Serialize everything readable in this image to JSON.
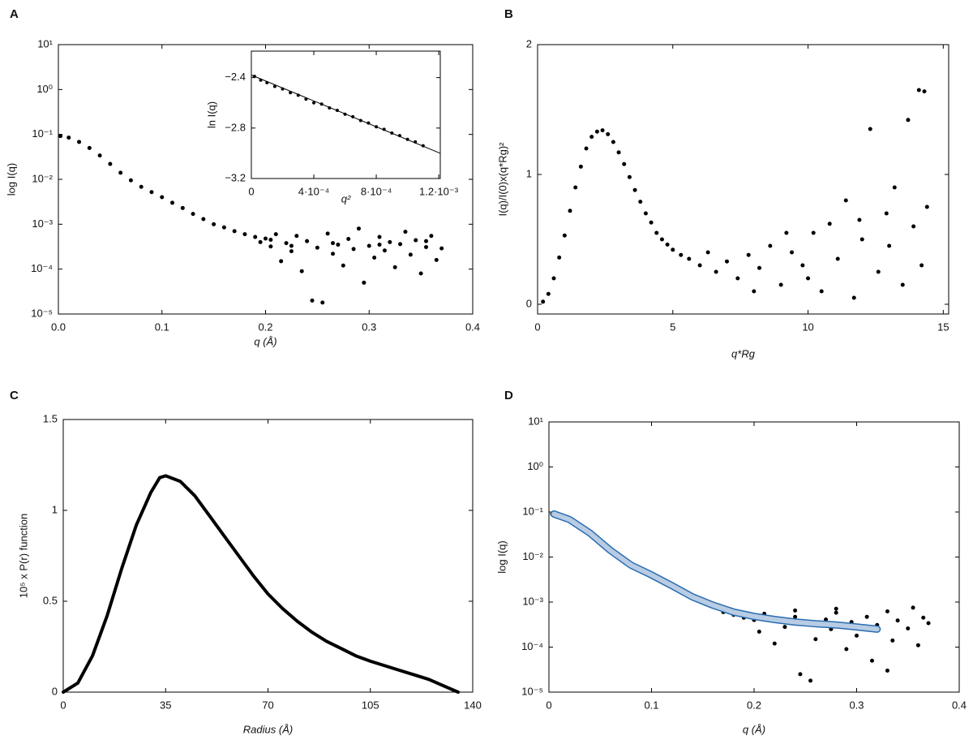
{
  "chart_data": [
    {
      "panel": "A",
      "type": "scatter",
      "xlabel": "q (Å)",
      "ylabel": "log I(q)",
      "yscale": "log",
      "xlim": [
        0,
        0.4
      ],
      "xticks": [
        {
          "value": 0,
          "label": "0.0"
        },
        0.1,
        0.2,
        0.3,
        0.4
      ],
      "ylim": [
        1e-05,
        10
      ],
      "yticks": [
        {
          "value": 10,
          "label": "10¹"
        },
        {
          "value": 1,
          "label": "10⁰"
        },
        {
          "value": 0.1,
          "label": "10⁻¹"
        },
        {
          "value": 0.01,
          "label": "10⁻²"
        },
        {
          "value": 0.001,
          "label": "10⁻³"
        },
        {
          "value": 0.0001,
          "label": "10⁻⁴"
        },
        {
          "value": 1e-05,
          "label": "10⁻⁵"
        }
      ],
      "series": [
        {
          "type": "scatter",
          "color": "#000000",
          "x": [
            0.002,
            0.01,
            0.02,
            0.03,
            0.04,
            0.05,
            0.06,
            0.07,
            0.08,
            0.09,
            0.1,
            0.11,
            0.12,
            0.13,
            0.14,
            0.15,
            0.16,
            0.17,
            0.18,
            0.19,
            0.195,
            0.2,
            0.205,
            0.21,
            0.215,
            0.22,
            0.225,
            0.23,
            0.235,
            0.24,
            0.245,
            0.25,
            0.255,
            0.26,
            0.265,
            0.27,
            0.275,
            0.28,
            0.285,
            0.29,
            0.295,
            0.3,
            0.305,
            0.31,
            0.315,
            0.32,
            0.325,
            0.33,
            0.335,
            0.34,
            0.345,
            0.35,
            0.355,
            0.36,
            0.365,
            0.37,
            0.205,
            0.225,
            0.265,
            0.31,
            0.355
          ],
          "values": [
            0.092,
            0.085,
            0.068,
            0.05,
            0.034,
            0.022,
            0.014,
            0.0095,
            0.0068,
            0.0052,
            0.004,
            0.003,
            0.0023,
            0.0017,
            0.0013,
            0.001,
            0.00085,
            0.0007,
            0.0006,
            0.00052,
            0.0004,
            0.00048,
            0.00032,
            0.0006,
            0.00015,
            0.00038,
            0.00025,
            0.00055,
            9e-05,
            0.00042,
            2e-05,
            0.0003,
            1.8e-05,
            0.00062,
            0.00022,
            0.00035,
            0.00012,
            0.00047,
            0.00028,
            0.0008,
            5e-05,
            0.00033,
            0.00018,
            0.00052,
            0.00026,
            0.0004,
            0.00011,
            0.00036,
            0.00068,
            0.00021,
            0.00044,
            8e-05,
            0.00031,
            0.00055,
            0.00016,
            0.00029,
            0.00045,
            0.00033,
            0.00038,
            0.00035,
            0.00042
          ]
        }
      ]
    },
    {
      "type": "scatter",
      "xlabel": "q²",
      "ylabel": "ln I(q)",
      "xlim": [
        0,
        0.00121
      ],
      "xticks": [
        0,
        {
          "value": 0.0004,
          "label": "4·10⁻⁴"
        },
        {
          "value": 0.0008,
          "label": "8·10⁻⁴"
        },
        {
          "value": 0.0012,
          "label": "1.2·10⁻³"
        }
      ],
      "ylim": [
        -3.2,
        -2.19
      ],
      "yticks": [
        {
          "value": -2.4,
          "label": "−2.4"
        },
        {
          "value": -2.8,
          "label": "−2.8"
        },
        {
          "value": -3.2,
          "label": "−3.2"
        }
      ],
      "series": [
        {
          "type": "scatter",
          "color": "#000000",
          "x": [
            2e-05,
            6e-05,
            0.0001,
            0.00015,
            0.0002,
            0.00025,
            0.0003,
            0.00035,
            0.0004,
            0.00045,
            0.0005,
            0.00055,
            0.0006,
            0.00065,
            0.0007,
            0.00075,
            0.0008,
            0.00085,
            0.0009,
            0.00095,
            0.001,
            0.00105,
            0.0011
          ],
          "values": [
            -2.39,
            -2.42,
            -2.44,
            -2.47,
            -2.49,
            -2.52,
            -2.54,
            -2.57,
            -2.6,
            -2.61,
            -2.64,
            -2.66,
            -2.69,
            -2.71,
            -2.74,
            -2.76,
            -2.79,
            -2.81,
            -2.84,
            -2.86,
            -2.89,
            -2.91,
            -2.94
          ]
        },
        {
          "type": "line",
          "color": "#000000",
          "linewidth": 1,
          "x": [
            0,
            0.00121
          ],
          "values": [
            -2.38,
            -3.0
          ]
        }
      ]
    },
    {
      "panel": "B",
      "type": "scatter",
      "xlabel": "q*Rg",
      "ylabel": "I(q)/I(0)x(q*Rg)²",
      "xlim": [
        0,
        15.2
      ],
      "xticks": [
        0,
        5,
        10,
        15
      ],
      "ylim": [
        -0.075,
        2.0
      ],
      "yticks": [
        0,
        1,
        2
      ],
      "series": [
        {
          "type": "scatter",
          "color": "#000000",
          "x": [
            0.2,
            0.4,
            0.6,
            0.8,
            1.0,
            1.2,
            1.4,
            1.6,
            1.8,
            2.0,
            2.2,
            2.4,
            2.6,
            2.8,
            3.0,
            3.2,
            3.4,
            3.6,
            3.8,
            4.0,
            4.2,
            4.4,
            4.6,
            4.8,
            5.0,
            5.3,
            5.6,
            6.0,
            6.3,
            6.6,
            7.0,
            7.4,
            7.8,
            8.2,
            8.6,
            9.0,
            9.4,
            9.8,
            10.2,
            10.5,
            10.8,
            11.1,
            11.4,
            11.7,
            12.0,
            12.3,
            12.6,
            12.9,
            13.2,
            13.5,
            13.7,
            13.9,
            14.1,
            14.3,
            14.4,
            14.2,
            13.0,
            11.9,
            10.0,
            9.2,
            8.0
          ],
          "values": [
            0.02,
            0.08,
            0.2,
            0.36,
            0.53,
            0.72,
            0.9,
            1.06,
            1.2,
            1.29,
            1.33,
            1.34,
            1.31,
            1.25,
            1.17,
            1.08,
            0.98,
            0.88,
            0.79,
            0.7,
            0.63,
            0.55,
            0.5,
            0.46,
            0.42,
            0.38,
            0.35,
            0.3,
            0.4,
            0.25,
            0.33,
            0.2,
            0.38,
            0.28,
            0.45,
            0.15,
            0.4,
            0.3,
            0.55,
            0.1,
            0.62,
            0.35,
            0.8,
            0.05,
            0.5,
            1.35,
            0.25,
            0.7,
            0.9,
            0.15,
            1.42,
            0.6,
            1.65,
            1.64,
            0.75,
            0.3,
            0.45,
            0.65,
            0.2,
            0.55,
            0.1
          ]
        }
      ]
    },
    {
      "panel": "C",
      "type": "line",
      "xlabel": "Radius (Å)",
      "ylabel": "10⁵ x P(r) function",
      "xlim": [
        0,
        140
      ],
      "xticks": [
        0,
        35,
        70,
        105,
        140
      ],
      "ylim": [
        0,
        1.5
      ],
      "yticks": [
        0,
        0.5,
        1,
        1.5
      ],
      "series": [
        {
          "type": "line",
          "color": "#000000",
          "linewidth": 4,
          "x": [
            0,
            5,
            10,
            15,
            20,
            25,
            30,
            33,
            35,
            40,
            45,
            50,
            55,
            60,
            65,
            70,
            75,
            80,
            85,
            90,
            95,
            100,
            105,
            110,
            115,
            120,
            125,
            130,
            135
          ],
          "values": [
            0,
            0.05,
            0.2,
            0.42,
            0.68,
            0.92,
            1.1,
            1.18,
            1.19,
            1.16,
            1.08,
            0.97,
            0.86,
            0.75,
            0.64,
            0.54,
            0.46,
            0.39,
            0.33,
            0.28,
            0.24,
            0.2,
            0.17,
            0.145,
            0.12,
            0.095,
            0.07,
            0.035,
            0
          ]
        }
      ]
    },
    {
      "panel": "D",
      "type": "scatter",
      "xlabel": "q (Å)",
      "ylabel": "log I(q)",
      "yscale": "log",
      "xlim": [
        0,
        0.4
      ],
      "xticks": [
        0,
        0.1,
        0.2,
        0.3,
        0.4
      ],
      "ylim": [
        1e-05,
        10
      ],
      "yticks": [
        {
          "value": 10,
          "label": "10¹"
        },
        {
          "value": 1,
          "label": "10⁰"
        },
        {
          "value": 0.1,
          "label": "10⁻¹"
        },
        {
          "value": 0.01,
          "label": "10⁻²"
        },
        {
          "value": 0.001,
          "label": "10⁻³"
        },
        {
          "value": 0.0001,
          "label": "10⁻⁴"
        },
        {
          "value": 1e-05,
          "label": "10⁻⁵"
        }
      ],
      "series": [
        {
          "type": "scatter",
          "color": "#000000",
          "x": [
            0.003,
            0.015,
            0.03,
            0.045,
            0.06,
            0.075,
            0.09,
            0.105,
            0.12,
            0.135,
            0.15,
            0.16,
            0.17,
            0.18,
            0.19,
            0.2,
            0.205,
            0.21,
            0.22,
            0.225,
            0.23,
            0.24,
            0.245,
            0.25,
            0.255,
            0.26,
            0.27,
            0.275,
            0.28,
            0.29,
            0.295,
            0.3,
            0.31,
            0.315,
            0.32,
            0.33,
            0.335,
            0.34,
            0.35,
            0.355,
            0.36,
            0.365,
            0.37,
            0.24,
            0.28,
            0.33
          ],
          "values": [
            0.09,
            0.078,
            0.05,
            0.028,
            0.014,
            0.0082,
            0.0052,
            0.0035,
            0.0023,
            0.0015,
            0.001,
            0.00085,
            0.0006,
            0.00052,
            0.00045,
            0.0004,
            0.00022,
            0.00055,
            0.00012,
            0.00038,
            0.00028,
            0.00047,
            2.5e-05,
            0.00033,
            1.8e-05,
            0.00015,
            0.00041,
            0.00025,
            0.00058,
            9e-05,
            0.00036,
            0.00018,
            0.00047,
            5e-05,
            0.00031,
            0.00062,
            0.00014,
            0.00039,
            0.00026,
            0.00075,
            0.00011,
            0.00045,
            0.00034,
            0.00065,
            0.00071,
            3e-05
          ]
        },
        {
          "type": "line",
          "color": "#2b6cb0",
          "fill_color": "#b8cce4",
          "linewidth": 9,
          "x": [
            0.005,
            0.02,
            0.04,
            0.06,
            0.08,
            0.1,
            0.12,
            0.14,
            0.16,
            0.18,
            0.2,
            0.22,
            0.24,
            0.26,
            0.28,
            0.3,
            0.32
          ],
          "values": [
            0.09,
            0.068,
            0.034,
            0.014,
            0.0066,
            0.004,
            0.0023,
            0.0013,
            0.00085,
            0.0006,
            0.00048,
            0.00041,
            0.00036,
            0.00033,
            0.00031,
            0.00028,
            0.00025
          ]
        }
      ]
    }
  ]
}
